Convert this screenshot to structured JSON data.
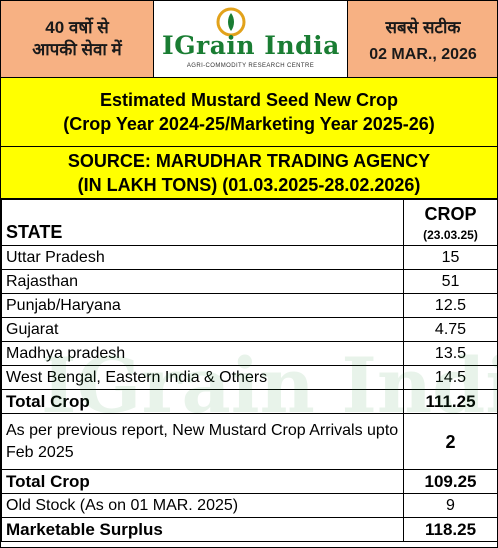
{
  "header": {
    "left_line1": "40 वर्षो से",
    "left_line2": "आपकी सेवा में",
    "logo_title": "IGrain India",
    "logo_subtitle": "AGRI-COMMODITY RESEARCH CENTRE",
    "right_line1": "सबसे सटीक",
    "right_date": "02 MAR., 2026"
  },
  "title": {
    "line1": "Estimated Mustard Seed New Crop",
    "line2": "(Crop Year 2024-25/Marketing Year 2025-26)",
    "source": "SOURCE: MARUDHAR TRADING AGENCY",
    "units": "(IN LAKH TONS) (01.03.2025-28.02.2026)"
  },
  "table": {
    "col_state": "STATE",
    "col_crop": "CROP",
    "col_crop_date": "(23.03.25)",
    "rows": [
      {
        "state": "Uttar Pradesh",
        "crop": "15"
      },
      {
        "state": "Rajasthan",
        "crop": "51"
      },
      {
        "state": "Punjab/Haryana",
        "crop": "12.5"
      },
      {
        "state": "Gujarat",
        "crop": "4.75"
      },
      {
        "state": "Madhya pradesh",
        "crop": "13.5"
      },
      {
        "state": "West Bengal, Eastern India & Others",
        "crop": "14.5"
      }
    ],
    "total1_label": "Total Crop",
    "total1_value": "111.25",
    "arrivals_label": "As per previous report, New Mustard Crop Arrivals upto Feb 2025",
    "arrivals_value": "2",
    "total2_label": "Total Crop",
    "total2_value": "109.25",
    "oldstock_label": "Old Stock (As on 01 MAR. 2025)",
    "oldstock_value": "9",
    "surplus_label": "Marketable Surplus",
    "surplus_value": "118.25"
  },
  "watermark": "IGrain India",
  "colors": {
    "header_bg": "#f7b183",
    "band_bg": "#ffff00",
    "logo_green": "#1a7d33"
  }
}
